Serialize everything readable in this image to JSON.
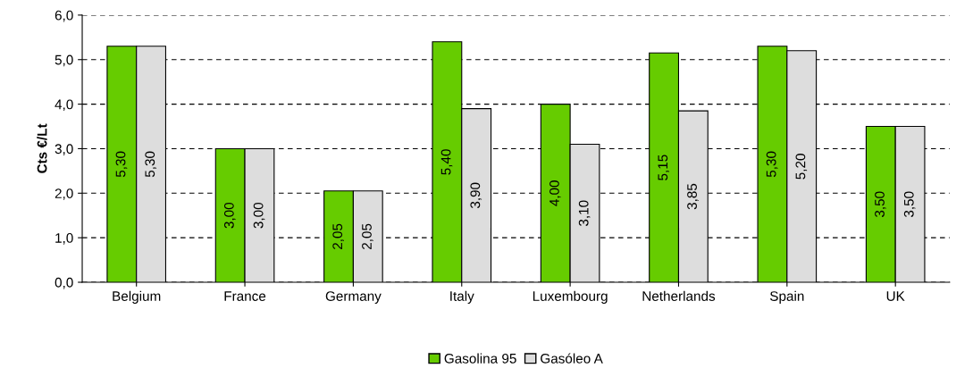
{
  "chart_data": {
    "type": "bar",
    "ylabel": "Cts €/Lt",
    "categories": [
      "Belgium",
      "France",
      "Germany",
      "Italy",
      "Luxembourg",
      "Netherlands",
      "Spain",
      "UK"
    ],
    "series": [
      {
        "name": "Gasolina 95",
        "color": "#66cc00",
        "values": [
          5.3,
          3.0,
          2.05,
          5.4,
          4.0,
          5.15,
          5.3,
          3.5
        ],
        "value_labels": [
          "5,30",
          "3,00",
          "2,05",
          "5,40",
          "4,00",
          "5,15",
          "5,30",
          "3,50"
        ]
      },
      {
        "name": "Gasóleo A",
        "color": "#dddddd",
        "values": [
          5.3,
          3.0,
          2.05,
          3.9,
          3.1,
          3.85,
          5.2,
          3.5
        ],
        "value_labels": [
          "5,30",
          "3,00",
          "2,05",
          "3,90",
          "3,10",
          "3,85",
          "5,20",
          "3,50"
        ]
      }
    ],
    "ylim": [
      0,
      6
    ],
    "yticks": [
      {
        "value": 0,
        "label": "0,0"
      },
      {
        "value": 1,
        "label": "1,0"
      },
      {
        "value": 2,
        "label": "2,0"
      },
      {
        "value": 3,
        "label": "3,0"
      },
      {
        "value": 4,
        "label": "4,0"
      },
      {
        "value": 5,
        "label": "5,0"
      },
      {
        "value": 6,
        "label": "6,0"
      }
    ],
    "grid": "y",
    "legend": "bottom"
  }
}
